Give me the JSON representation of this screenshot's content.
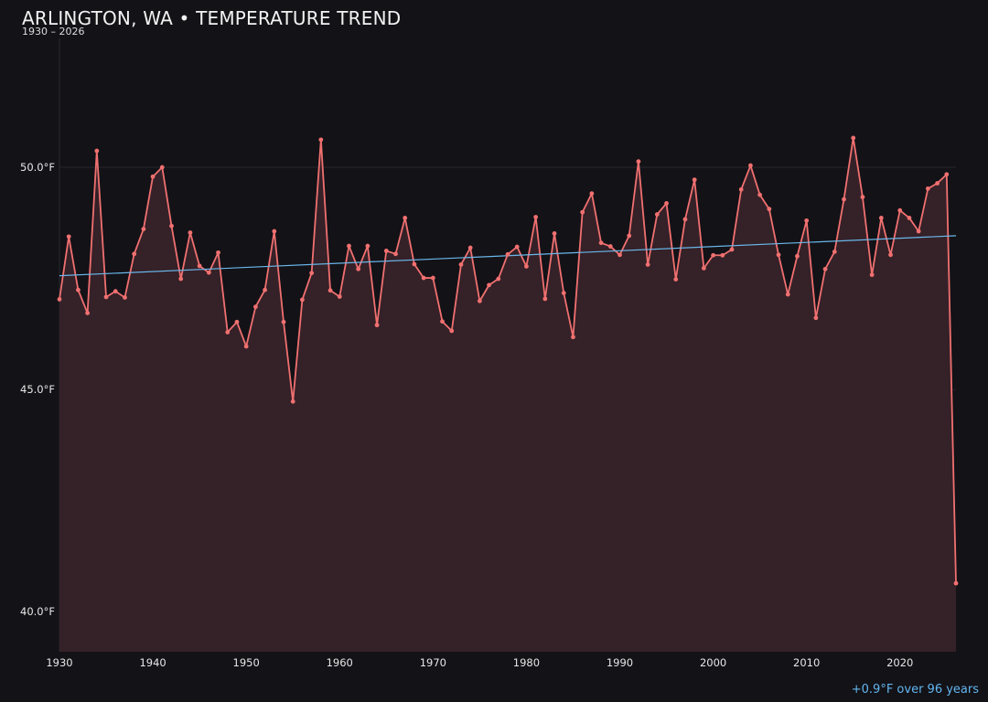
{
  "chart_data": {
    "type": "line",
    "title": "ARLINGTON, WA • TEMPERATURE TREND",
    "subtitle": "1930 – 2026",
    "footer": "+0.9°F over 96 years",
    "xlim": [
      1930,
      2026
    ],
    "ylim": [
      39.1,
      52.9
    ],
    "x_ticks": [
      {
        "value": 1930,
        "label": "1930"
      },
      {
        "value": 1940,
        "label": "1940"
      },
      {
        "value": 1950,
        "label": "1950"
      },
      {
        "value": 1960,
        "label": "1960"
      },
      {
        "value": 1970,
        "label": "1970"
      },
      {
        "value": 1980,
        "label": "1980"
      },
      {
        "value": 1990,
        "label": "1990"
      },
      {
        "value": 2000,
        "label": "2000"
      },
      {
        "value": 2010,
        "label": "2010"
      },
      {
        "value": 2020,
        "label": "2020"
      }
    ],
    "y_ticks": [
      {
        "value": 40,
        "label": "40.0°F"
      },
      {
        "value": 45,
        "label": "45.0°F"
      },
      {
        "value": 50,
        "label": "50.0°F"
      }
    ],
    "grid": true,
    "series": [
      {
        "color": "#f07070",
        "x": [
          1930,
          1931,
          1932,
          1933,
          1934,
          1935,
          1936,
          1937,
          1938,
          1939,
          1940,
          1941,
          1942,
          1943,
          1944,
          1945,
          1946,
          1947,
          1948,
          1949,
          1950,
          1951,
          1952,
          1953,
          1954,
          1955,
          1956,
          1957,
          1958,
          1959,
          1960,
          1961,
          1962,
          1963,
          1964,
          1965,
          1966,
          1967,
          1968,
          1969,
          1970,
          1971,
          1972,
          1973,
          1974,
          1975,
          1976,
          1977,
          1978,
          1979,
          1980,
          1981,
          1982,
          1983,
          1984,
          1985,
          1986,
          1987,
          1988,
          1989,
          1990,
          1991,
          1992,
          1993,
          1994,
          1995,
          1996,
          1997,
          1998,
          1999,
          2000,
          2001,
          2002,
          2003,
          2004,
          2005,
          2006,
          2007,
          2008,
          2009,
          2010,
          2011,
          2012,
          2013,
          2014,
          2015,
          2016,
          2017,
          2018,
          2019,
          2020,
          2021,
          2022,
          2023,
          2024,
          2025,
          2026
        ],
        "y": [
          47.03,
          48.44,
          47.24,
          46.72,
          50.37,
          47.08,
          47.21,
          47.07,
          48.05,
          48.61,
          49.79,
          50.0,
          48.68,
          47.49,
          48.53,
          47.78,
          47.63,
          48.08,
          46.29,
          46.52,
          45.97,
          46.86,
          47.24,
          48.56,
          46.52,
          44.73,
          47.02,
          47.62,
          50.62,
          47.23,
          47.09,
          48.23,
          47.71,
          48.23,
          46.45,
          48.12,
          48.05,
          48.86,
          47.82,
          47.51,
          47.51,
          46.53,
          46.32,
          47.81,
          48.19,
          46.99,
          47.35,
          47.49,
          48.04,
          48.21,
          47.77,
          48.88,
          47.04,
          48.51,
          47.17,
          46.18,
          48.99,
          49.41,
          48.3,
          48.22,
          48.03,
          48.46,
          50.13,
          47.81,
          48.94,
          49.19,
          47.48,
          48.83,
          49.72,
          47.73,
          48.02,
          48.02,
          48.15,
          49.5,
          50.04,
          49.38,
          49.06,
          48.03,
          47.14,
          48.0,
          48.8,
          46.61,
          47.71,
          48.1,
          49.28,
          50.66,
          49.33,
          47.58,
          48.86,
          48.03,
          49.03,
          48.86,
          48.56,
          49.52,
          49.64,
          49.84,
          40.64
        ]
      }
    ],
    "trend": {
      "color": "#6ab7ea",
      "x": [
        1930,
        2026
      ],
      "y": [
        47.56,
        48.46
      ]
    }
  }
}
